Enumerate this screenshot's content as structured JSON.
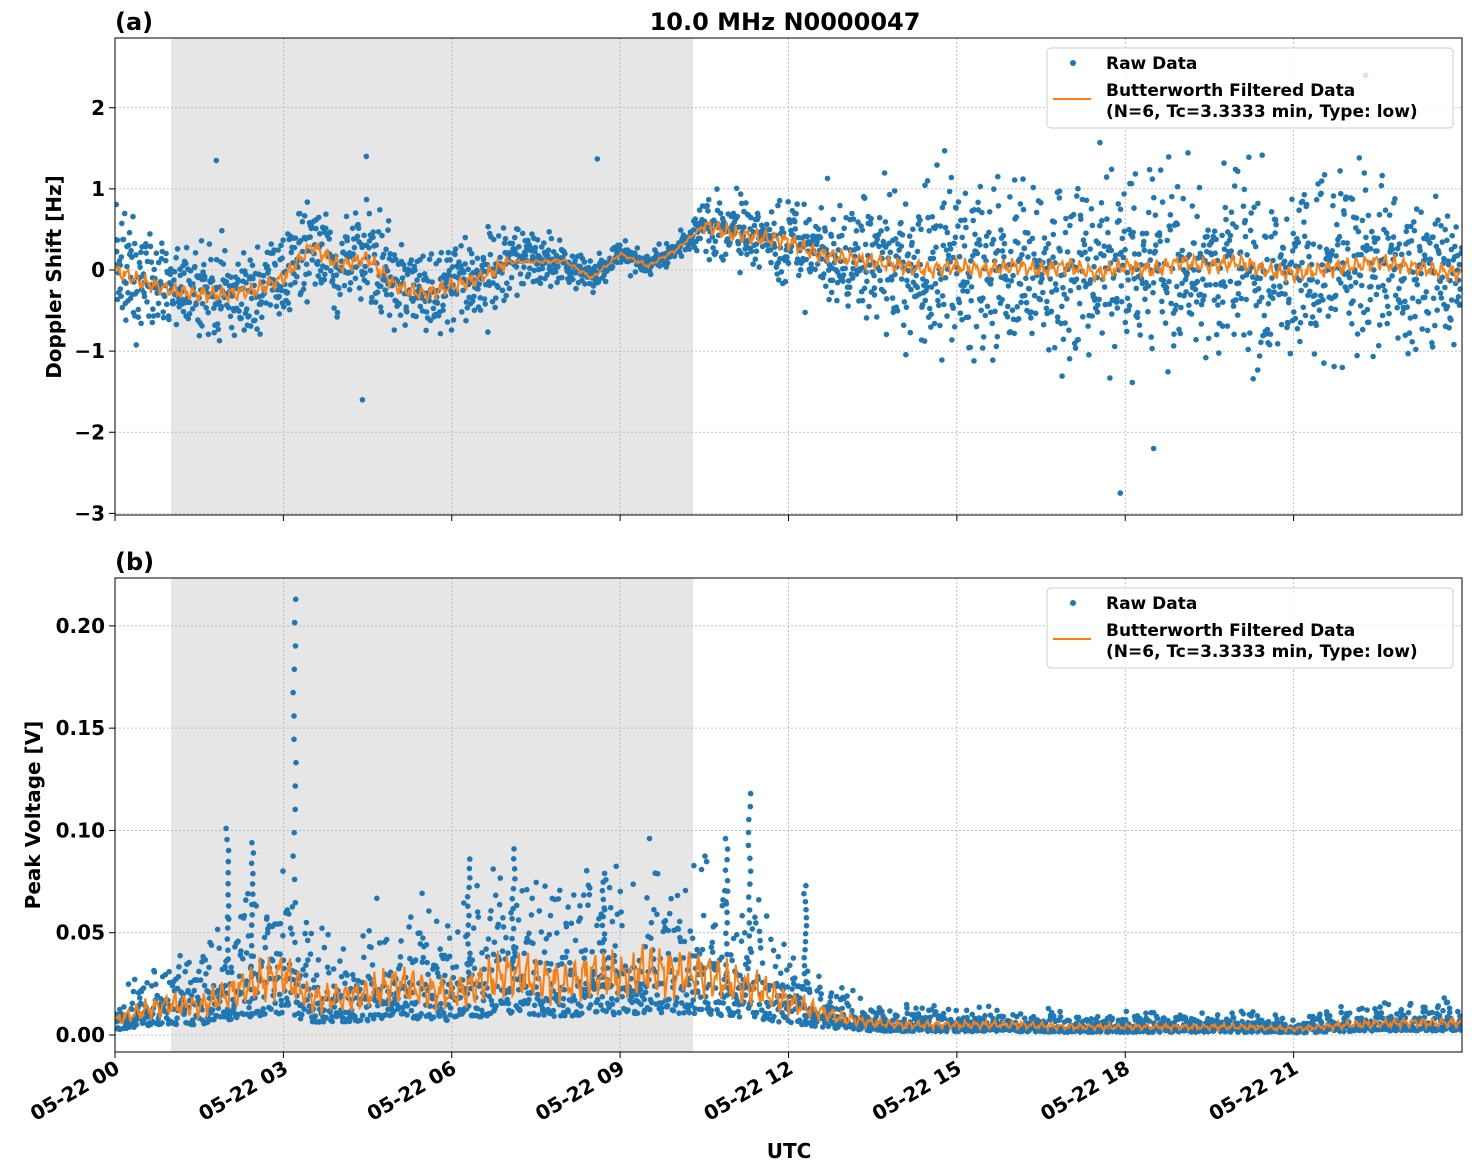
{
  "chart_data": [
    {
      "panel_label": "(a)",
      "title": "10.0 MHz N0000047",
      "type": "scatter+line",
      "xlabel": "",
      "ylabel": "Doppler Shift [Hz]",
      "xlim_hours": [
        0,
        24
      ],
      "ylim": [
        -3.02,
        2.86
      ],
      "yticks": [
        2,
        1,
        0,
        -1,
        -2,
        -3
      ],
      "ytick_labels": [
        "2",
        "1",
        "0",
        "−1",
        "−2",
        "−3"
      ],
      "grid": true,
      "legend_position": "top-right",
      "shaded_region_hours": [
        1.0,
        10.3
      ],
      "series": [
        {
          "name": "Raw Data",
          "kind": "scatter",
          "color": "#1f77b4",
          "note_spread_hourly": [
            0.6,
            0.55,
            0.5,
            0.5,
            0.55,
            0.55,
            0.45,
            0.45,
            0.2,
            0.15,
            0.12,
            0.4,
            0.45,
            0.6,
            0.85,
            0.95,
            1.0,
            1.0,
            1.0,
            1.0,
            1.0,
            1.0,
            1.0,
            0.95,
            0.9
          ],
          "outliers": [
            {
              "t": 1.8,
              "v": 1.35
            },
            {
              "t": 4.5,
              "v": 1.4
            },
            {
              "t": 8.6,
              "v": 1.37
            },
            {
              "t": 17.9,
              "v": -2.75
            },
            {
              "t": 22.3,
              "v": 2.4
            },
            {
              "t": 4.4,
              "v": -1.6
            },
            {
              "t": 18.5,
              "v": -2.2
            }
          ]
        },
        {
          "name": "Butterworth Filtered Data",
          "name_line2": "(N=6, Tc=3.3333 min, Type: low)",
          "kind": "line",
          "color": "#ff7f0e",
          "t_hours": [
            0,
            0.5,
            1,
            1.5,
            2,
            2.5,
            3,
            3.5,
            4,
            4.5,
            5,
            5.5,
            6,
            6.5,
            7,
            7.5,
            8,
            8.5,
            9,
            9.5,
            10,
            10.5,
            11,
            11.5,
            12,
            12.5,
            13,
            13.5,
            14,
            14.5,
            15,
            15.5,
            16,
            16.5,
            17,
            17.5,
            18,
            18.5,
            19,
            19.5,
            20,
            20.5,
            21,
            21.5,
            22,
            22.5,
            23,
            23.5,
            24
          ],
          "values": [
            0.0,
            -0.15,
            -0.25,
            -0.3,
            -0.3,
            -0.25,
            -0.1,
            0.3,
            0.05,
            0.15,
            -0.2,
            -0.3,
            -0.2,
            -0.1,
            0.1,
            0.1,
            0.12,
            -0.1,
            0.2,
            0.05,
            0.25,
            0.55,
            0.45,
            0.4,
            0.35,
            0.2,
            0.15,
            0.1,
            0.05,
            0.0,
            0.05,
            0.0,
            0.05,
            0.0,
            0.05,
            -0.05,
            0.05,
            0.0,
            0.1,
            0.05,
            0.1,
            0.0,
            -0.05,
            0.0,
            0.05,
            0.1,
            0.05,
            0.0,
            -0.05
          ]
        }
      ]
    },
    {
      "panel_label": "(b)",
      "type": "scatter+line",
      "xlabel": "UTC",
      "ylabel": "Peak Voltage [V]",
      "xlim_hours": [
        0,
        24
      ],
      "ylim": [
        -0.0083,
        0.2234
      ],
      "yticks": [
        0.2,
        0.15,
        0.1,
        0.05,
        0.0
      ],
      "ytick_labels": [
        "0.20",
        "0.15",
        "0.10",
        "0.05",
        "0.00"
      ],
      "xtick_hours": [
        0,
        3,
        6,
        9,
        12,
        15,
        18,
        21
      ],
      "xtick_labels": [
        "05-22 00",
        "05-22 03",
        "05-22 06",
        "05-22 09",
        "05-22 12",
        "05-22 15",
        "05-22 18",
        "05-22 21"
      ],
      "grid": true,
      "legend_position": "top-right",
      "shaded_region_hours": [
        1.0,
        10.3
      ],
      "series": [
        {
          "name": "Raw Data",
          "kind": "scatter",
          "color": "#1f77b4",
          "peaks": [
            {
              "t": 2.0,
              "v": 0.101
            },
            {
              "t": 2.45,
              "v": 0.094
            },
            {
              "t": 3.2,
              "v": 0.213
            },
            {
              "t": 6.3,
              "v": 0.086
            },
            {
              "t": 7.1,
              "v": 0.091
            },
            {
              "t": 8.7,
              "v": 0.079
            },
            {
              "t": 10.9,
              "v": 0.096
            },
            {
              "t": 11.3,
              "v": 0.118
            },
            {
              "t": 12.3,
              "v": 0.073
            }
          ]
        },
        {
          "name": "Butterworth Filtered Data",
          "name_line2": "(N=6, Tc=3.3333 min, Type: low)",
          "kind": "line",
          "color": "#ff7f0e",
          "t_hours": [
            0,
            0.5,
            1,
            1.5,
            2,
            2.5,
            3,
            3.5,
            4,
            4.5,
            5,
            5.5,
            6,
            6.5,
            7,
            7.5,
            8,
            8.5,
            9,
            9.5,
            10,
            10.5,
            11,
            11.5,
            12,
            12.5,
            13,
            13.5,
            14,
            15,
            16,
            17,
            18,
            19,
            20,
            21,
            22,
            23,
            24
          ],
          "values": [
            0.007,
            0.012,
            0.015,
            0.014,
            0.02,
            0.025,
            0.03,
            0.018,
            0.018,
            0.02,
            0.025,
            0.022,
            0.02,
            0.025,
            0.03,
            0.028,
            0.025,
            0.03,
            0.028,
            0.032,
            0.03,
            0.03,
            0.025,
            0.022,
            0.016,
            0.012,
            0.008,
            0.006,
            0.005,
            0.005,
            0.005,
            0.004,
            0.004,
            0.004,
            0.004,
            0.003,
            0.005,
            0.006,
            0.006
          ]
        }
      ]
    }
  ]
}
